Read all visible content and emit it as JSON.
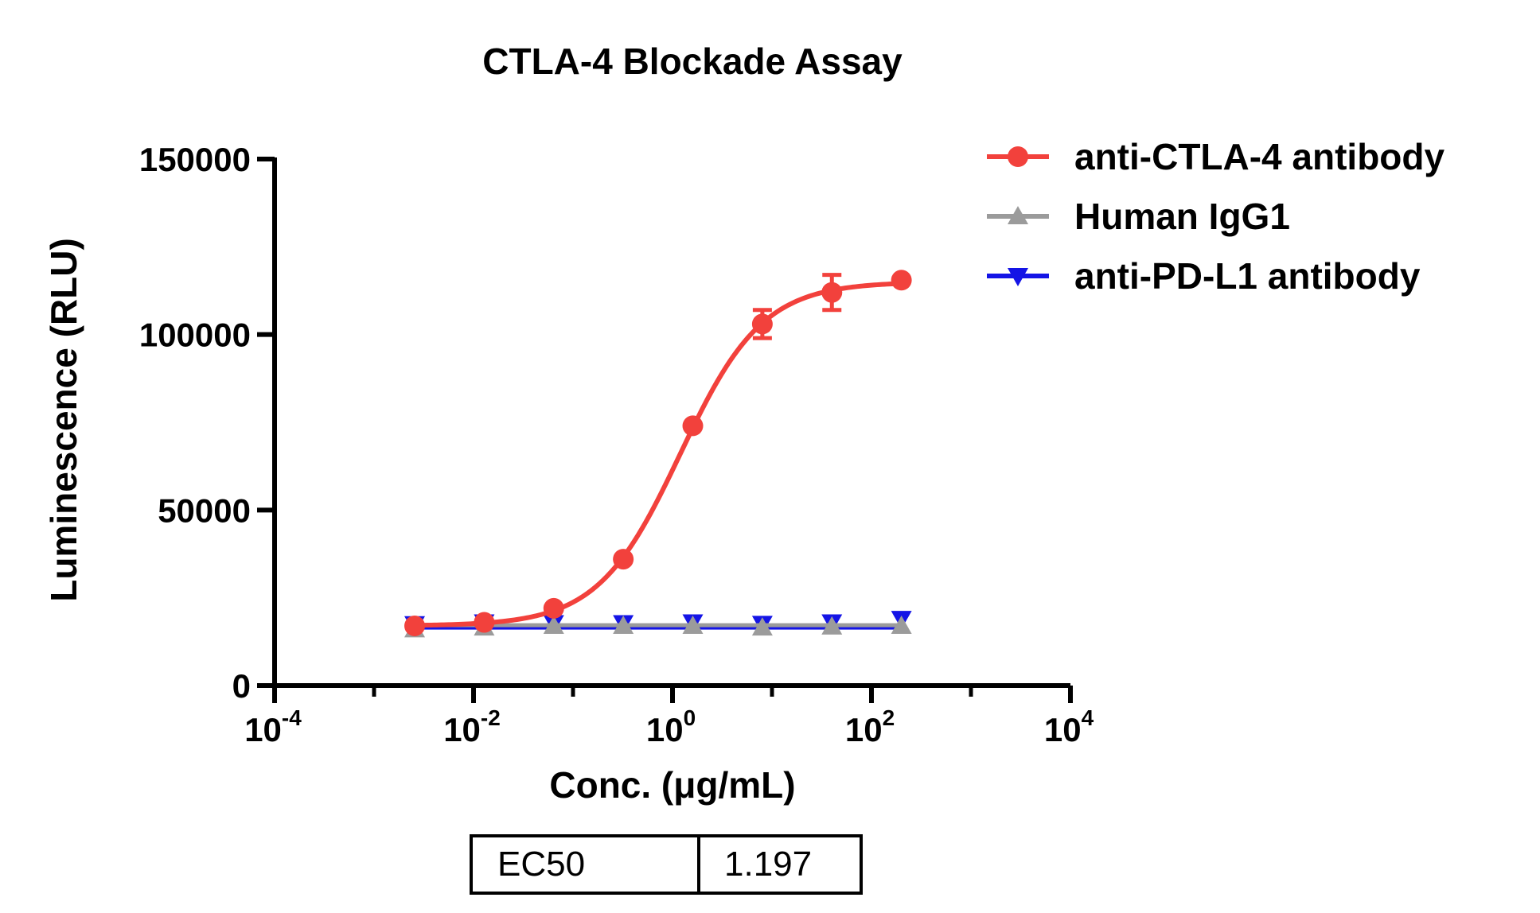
{
  "chart_data": {
    "type": "line",
    "title": "CTLA-4 Blockade Assay",
    "xlabel": "Conc. (μg/mL)",
    "ylabel": "Luminescence (RLU)",
    "x_scale": "log",
    "xlim": [
      0.0001,
      10000
    ],
    "ylim": [
      0,
      150000
    ],
    "x_ticks": [
      {
        "value": 0.0001,
        "base": "10",
        "exp": "-4"
      },
      {
        "value": 0.01,
        "base": "10",
        "exp": "-2"
      },
      {
        "value": 1,
        "base": "10",
        "exp": "0"
      },
      {
        "value": 100,
        "base": "10",
        "exp": "2"
      },
      {
        "value": 10000,
        "base": "10",
        "exp": "4"
      }
    ],
    "y_ticks": [
      {
        "value": 0,
        "label": "0"
      },
      {
        "value": 50000,
        "label": "50000"
      },
      {
        "value": 100000,
        "label": "100000"
      },
      {
        "value": 150000,
        "label": "150000"
      }
    ],
    "legend_position": "top-right",
    "grid": false,
    "series": [
      {
        "name": "anti-CTLA-4 antibody",
        "color": "#f2413c",
        "marker": "circle",
        "x": [
          0.00256,
          0.0128,
          0.064,
          0.32,
          1.6,
          8,
          40,
          200
        ],
        "y": [
          17000,
          18000,
          22000,
          36000,
          74000,
          103000,
          112000,
          115500
        ],
        "error": [
          1000,
          1000,
          1000,
          1500,
          1500,
          4000,
          5000,
          1000
        ],
        "fit": {
          "bottom": 17000,
          "top": 115000,
          "ec50": 1.197,
          "hill": 1.05
        }
      },
      {
        "name": "Human IgG1",
        "color": "#9b9b9b",
        "marker": "triangle-up",
        "x": [
          0.00256,
          0.0128,
          0.064,
          0.32,
          1.6,
          8,
          40,
          200
        ],
        "y": [
          16000,
          16500,
          17000,
          17000,
          17000,
          16500,
          16800,
          17000
        ],
        "fit_level": 17200
      },
      {
        "name": "anti-PD-L1 antibody",
        "color": "#1414e6",
        "marker": "triangle-down",
        "x": [
          0.00256,
          0.0128,
          0.064,
          0.32,
          1.6,
          8,
          40,
          200
        ],
        "y": [
          17500,
          18000,
          17800,
          17800,
          18000,
          17600,
          18000,
          19000
        ],
        "fit_level": 16500
      }
    ],
    "table": {
      "label": "EC50",
      "value": "1.197"
    }
  }
}
